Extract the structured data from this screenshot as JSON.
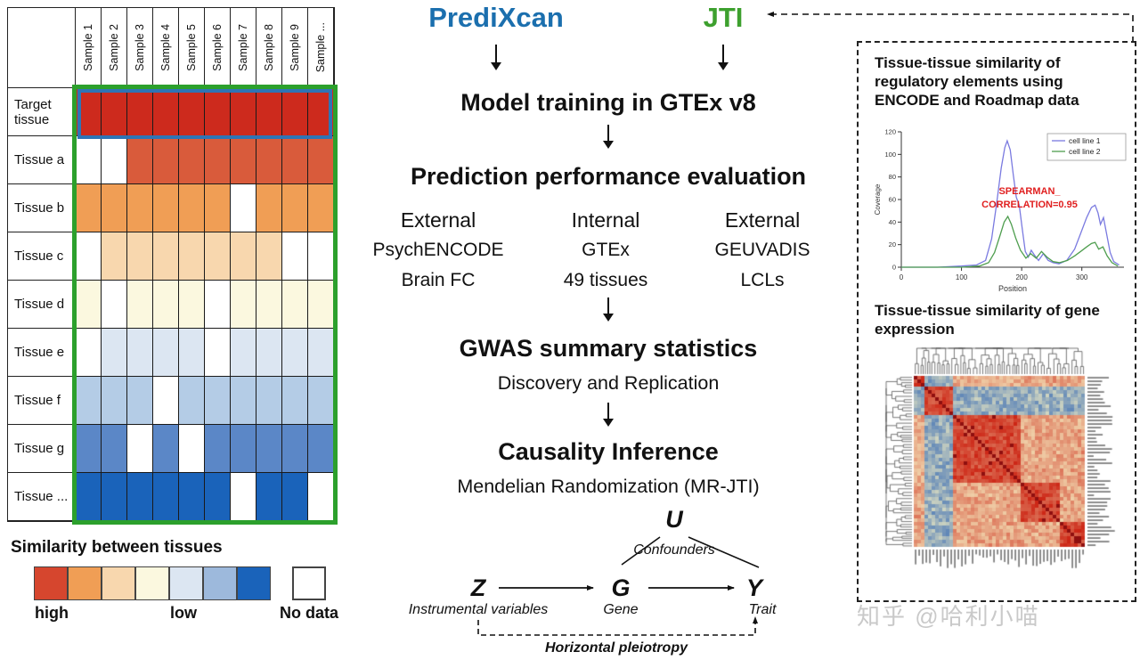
{
  "left_panel": {
    "col_headers": [
      "Sample 1",
      "Sample 2",
      "Sample 3",
      "Sample 4",
      "Sample 5",
      "Sample 6",
      "Sample 7",
      "Sample 8",
      "Sample 9",
      "Sample ..."
    ],
    "palette": {
      "r0": "#cd2a1d",
      "r1": "#d95b3b",
      "o1": "#f09e55",
      "o2": "#f8d7ae",
      "y1": "#fbf8df",
      "b1": "#dce6f2",
      "b2": "#b4cce6",
      "b3": "#5b87c7",
      "b4": "#1a63ba",
      "none": "#ffffff"
    },
    "rows": [
      {
        "label": "Target tissue",
        "cells": [
          "r0",
          "r0",
          "r0",
          "r0",
          "r0",
          "r0",
          "r0",
          "r0",
          "r0",
          "r0"
        ]
      },
      {
        "label": "Tissue a",
        "cells": [
          "none",
          "none",
          "r1",
          "r1",
          "r1",
          "r1",
          "r1",
          "r1",
          "r1",
          "r1"
        ]
      },
      {
        "label": "Tissue b",
        "cells": [
          "o1",
          "o1",
          "o1",
          "o1",
          "o1",
          "o1",
          "none",
          "o1",
          "o1",
          "o1"
        ]
      },
      {
        "label": "Tissue c",
        "cells": [
          "none",
          "o2",
          "o2",
          "o2",
          "o2",
          "o2",
          "o2",
          "o2",
          "none",
          "none"
        ]
      },
      {
        "label": "Tissue d",
        "cells": [
          "y1",
          "none",
          "y1",
          "y1",
          "y1",
          "none",
          "y1",
          "y1",
          "y1",
          "y1"
        ]
      },
      {
        "label": "Tissue e",
        "cells": [
          "none",
          "b1",
          "b1",
          "b1",
          "b1",
          "none",
          "b1",
          "b1",
          "b1",
          "b1"
        ]
      },
      {
        "label": "Tissue f",
        "cells": [
          "b2",
          "b2",
          "b2",
          "none",
          "b2",
          "b2",
          "b2",
          "b2",
          "b2",
          "b2"
        ]
      },
      {
        "label": "Tissue g",
        "cells": [
          "b3",
          "b3",
          "none",
          "b3",
          "none",
          "b3",
          "b3",
          "b3",
          "b3",
          "b3"
        ]
      },
      {
        "label": "Tissue ...",
        "cells": [
          "b4",
          "b4",
          "b4",
          "b4",
          "b4",
          "b4",
          "none",
          "b4",
          "b4",
          "none"
        ]
      }
    ],
    "borders": {
      "grid_outline": "#2ca02c",
      "target_row_outline": "#2e74b5"
    },
    "legend": {
      "title": "Similarity between tissues",
      "swatches": [
        "#d6462e",
        "#f09e55",
        "#f8d7ae",
        "#fbf8df",
        "#dce6f2",
        "#9db9dc",
        "#1a63ba"
      ],
      "high_label": "high",
      "low_label": "low",
      "no_data_label": "No data",
      "no_data_color": "#ffffff"
    }
  },
  "flow": {
    "predixcan": "PrediXcan",
    "predixcan_color": "#1b6fae",
    "jti": "JTI",
    "jti_color": "#3da02e",
    "model_training": "Model training in GTEx v8",
    "prediction_eval": "Prediction performance evaluation",
    "eval_columns": [
      {
        "line1": "External",
        "line2": "PsychENCODE",
        "line3": "Brain FC"
      },
      {
        "line1": "Internal",
        "line2": "GTEx",
        "line3": "49 tissues"
      },
      {
        "line1": "External",
        "line2": "GEUVADIS",
        "line3": "LCLs"
      }
    ],
    "gwas": "GWAS summary statistics",
    "gwas_sub": "Discovery and Replication",
    "causality": "Causality Inference",
    "causality_sub": "Mendelian Randomization (MR-JTI)",
    "dag": {
      "u": "U",
      "u_label": "Confounders",
      "z": "Z",
      "z_label": "Instrumental variables",
      "g": "G",
      "g_label": "Gene",
      "y": "Y",
      "y_label": "Trait",
      "pleiotropy_label": "Horizontal pleiotropy"
    }
  },
  "right_panel": {
    "title_regulatory": "Tissue-tissue similarity of regulatory elements using ENCODE and Roadmap data",
    "title_expression": "Tissue-tissue similarity of gene expression",
    "watermark": "知乎 @哈利小喵"
  },
  "chart_data": [
    {
      "type": "line",
      "title": "",
      "xlabel": "Position",
      "ylabel": "Coverage",
      "xlim": [
        0,
        370
      ],
      "ylim": [
        0,
        120
      ],
      "xticks": [
        0,
        100,
        200,
        300
      ],
      "yticks": [
        0,
        20,
        40,
        60,
        80,
        100,
        120
      ],
      "legend_position": "top-right",
      "annotation": {
        "lines": [
          "SPEARMAN_",
          "CORRELATION=0.95"
        ],
        "color": "#e01f1f"
      },
      "series": [
        {
          "name": "cell line 1",
          "color": "#7a7ae0",
          "points": [
            [
              0,
              0
            ],
            [
              60,
              0
            ],
            [
              100,
              1
            ],
            [
              125,
              2
            ],
            [
              140,
              6
            ],
            [
              150,
              25
            ],
            [
              158,
              55
            ],
            [
              166,
              88
            ],
            [
              172,
              106
            ],
            [
              176,
              112
            ],
            [
              181,
              104
            ],
            [
              186,
              82
            ],
            [
              191,
              62
            ],
            [
              196,
              55
            ],
            [
              201,
              34
            ],
            [
              206,
              14
            ],
            [
              211,
              9
            ],
            [
              216,
              15
            ],
            [
              221,
              11
            ],
            [
              228,
              6
            ],
            [
              236,
              12
            ],
            [
              244,
              6
            ],
            [
              252,
              4
            ],
            [
              262,
              3
            ],
            [
              275,
              6
            ],
            [
              288,
              16
            ],
            [
              298,
              30
            ],
            [
              308,
              44
            ],
            [
              316,
              53
            ],
            [
              322,
              55
            ],
            [
              327,
              48
            ],
            [
              331,
              38
            ],
            [
              336,
              44
            ],
            [
              341,
              30
            ],
            [
              347,
              13
            ],
            [
              353,
              5
            ],
            [
              362,
              2
            ]
          ]
        },
        {
          "name": "cell line 2",
          "color": "#4f9e4f",
          "points": [
            [
              0,
              0
            ],
            [
              100,
              0
            ],
            [
              130,
              1
            ],
            [
              145,
              4
            ],
            [
              155,
              13
            ],
            [
              164,
              28
            ],
            [
              171,
              40
            ],
            [
              177,
              45
            ],
            [
              183,
              38
            ],
            [
              190,
              26
            ],
            [
              198,
              15
            ],
            [
              207,
              8
            ],
            [
              215,
              12
            ],
            [
              224,
              8
            ],
            [
              233,
              14
            ],
            [
              242,
              9
            ],
            [
              252,
              5
            ],
            [
              263,
              4
            ],
            [
              276,
              6
            ],
            [
              288,
              10
            ],
            [
              298,
              14
            ],
            [
              308,
              18
            ],
            [
              316,
              21
            ],
            [
              322,
              22
            ],
            [
              328,
              16
            ],
            [
              335,
              18
            ],
            [
              342,
              10
            ],
            [
              350,
              4
            ],
            [
              360,
              1
            ]
          ]
        }
      ]
    },
    {
      "type": "heatmap",
      "title": "Tissue-tissue similarity of gene expression",
      "description": "Clustered tissue-tissue correlation matrix with top and left dendrograms; individual tissue labels not legible in source image.",
      "n": 48,
      "cluster_boundaries": [
        0,
        3,
        11,
        30,
        41,
        48
      ],
      "anti_correlated_cluster": 1,
      "palette": {
        "low": "#3a6cb4",
        "mid": "#f6f0c4",
        "high": "#cc2414",
        "diagonal": "#8f0f0f"
      }
    }
  ]
}
